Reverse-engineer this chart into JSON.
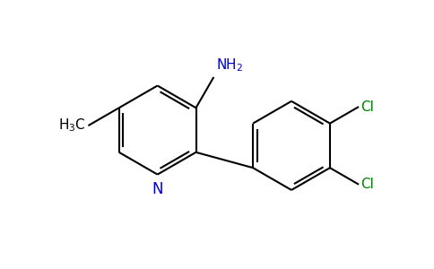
{
  "background_color": "#ffffff",
  "bond_color": "#000000",
  "N_color": "#0000cc",
  "Cl_color": "#008000",
  "NH2_color": "#0000cc",
  "CH3_color": "#000000",
  "bond_width": 1.5,
  "figsize": [
    4.84,
    3.0
  ],
  "dpi": 100,
  "xlim": [
    0,
    9.68
  ],
  "ylim": [
    0,
    6.0
  ]
}
